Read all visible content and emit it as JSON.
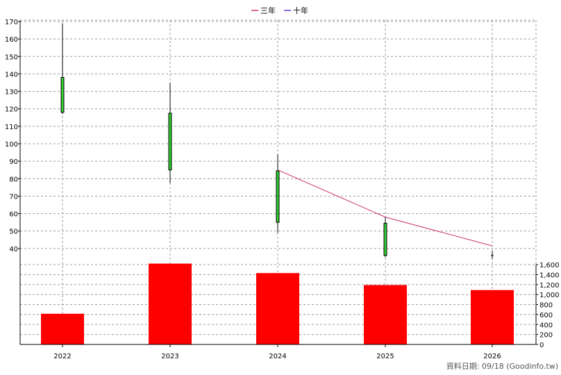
{
  "chart_data": {
    "type": "candlestick+bar",
    "legend": [
      {
        "name": "三年",
        "color": "#cc3366"
      },
      {
        "name": "十年",
        "color": "#6633cc"
      }
    ],
    "categories": [
      "2022",
      "2023",
      "2024",
      "2025",
      "2026"
    ],
    "price": {
      "ylim": [
        30,
        170
      ],
      "ticks": [
        40,
        50,
        60,
        70,
        80,
        90,
        100,
        110,
        120,
        130,
        140,
        150,
        160,
        170
      ],
      "candles": [
        {
          "x": "2022",
          "open": 118,
          "close": 138,
          "high": 169,
          "low": 117,
          "color": "#33cc33"
        },
        {
          "x": "2023",
          "open": 85,
          "close": 117.5,
          "high": 135,
          "low": 77.5,
          "color": "#33cc33"
        },
        {
          "x": "2024",
          "open": 55,
          "close": 84.5,
          "high": 94,
          "low": 49,
          "color": "#33cc33"
        },
        {
          "x": "2025",
          "open": 36,
          "close": 54.5,
          "high": 58,
          "low": 35,
          "color": "#33cc33"
        },
        {
          "x": "2026",
          "open": 36,
          "close": 36,
          "high": 38.5,
          "low": 34,
          "color": "#000000"
        }
      ],
      "three_year_line": {
        "color": "#cc3366",
        "x": [
          "2024",
          "2025",
          "2026"
        ],
        "y": [
          85,
          58,
          41.5
        ]
      }
    },
    "volume": {
      "ylim": [
        0,
        1600
      ],
      "ticks": [
        0,
        200,
        400,
        600,
        800,
        "1,000",
        "1,200",
        "1,400",
        "1,600"
      ],
      "values": [
        615,
        1620,
        1430,
        1190,
        1090
      ],
      "color": "#ff0000"
    }
  },
  "footer": "資料日期: 09/18  (Goodinfo.tw)",
  "colors": {
    "grid": "#999999",
    "axis": "#000000",
    "background": "#ffffff"
  }
}
